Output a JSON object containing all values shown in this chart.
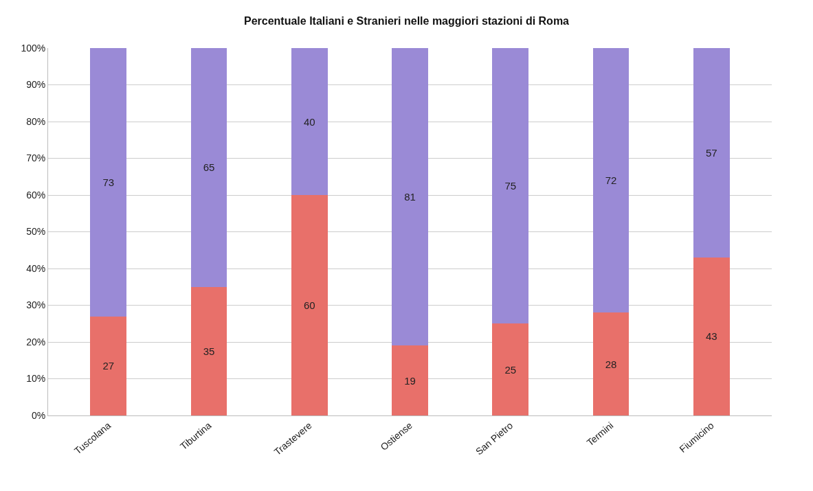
{
  "chart_data": {
    "type": "bar",
    "title": "Percentuale Italiani e Stranieri nelle maggiori stazioni di Roma",
    "categories": [
      "Tuscolana",
      "Tiburtina",
      "Trastevere",
      "Ostiense",
      "San Pietro",
      "Termini",
      "Fiumicino"
    ],
    "stacked": true,
    "data_labels": true,
    "grid": "y",
    "series": [
      {
        "color": "#e8706a",
        "values": [
          27,
          35,
          60,
          19,
          25,
          28,
          43
        ]
      },
      {
        "color": "#9a8ad6",
        "values": [
          73,
          65,
          40,
          81,
          75,
          72,
          57
        ]
      }
    ],
    "ylim": [
      0,
      100
    ],
    "yticks": [
      {
        "value": 0,
        "label": "0%"
      },
      {
        "value": 10,
        "label": "10%"
      },
      {
        "value": 20,
        "label": "20%"
      },
      {
        "value": 30,
        "label": "30%"
      },
      {
        "value": 40,
        "label": "40%"
      },
      {
        "value": 50,
        "label": "50%"
      },
      {
        "value": 60,
        "label": "60%"
      },
      {
        "value": 70,
        "label": "70%"
      },
      {
        "value": 80,
        "label": "80%"
      },
      {
        "value": 90,
        "label": "90%"
      },
      {
        "value": 100,
        "label": "100%"
      }
    ]
  }
}
